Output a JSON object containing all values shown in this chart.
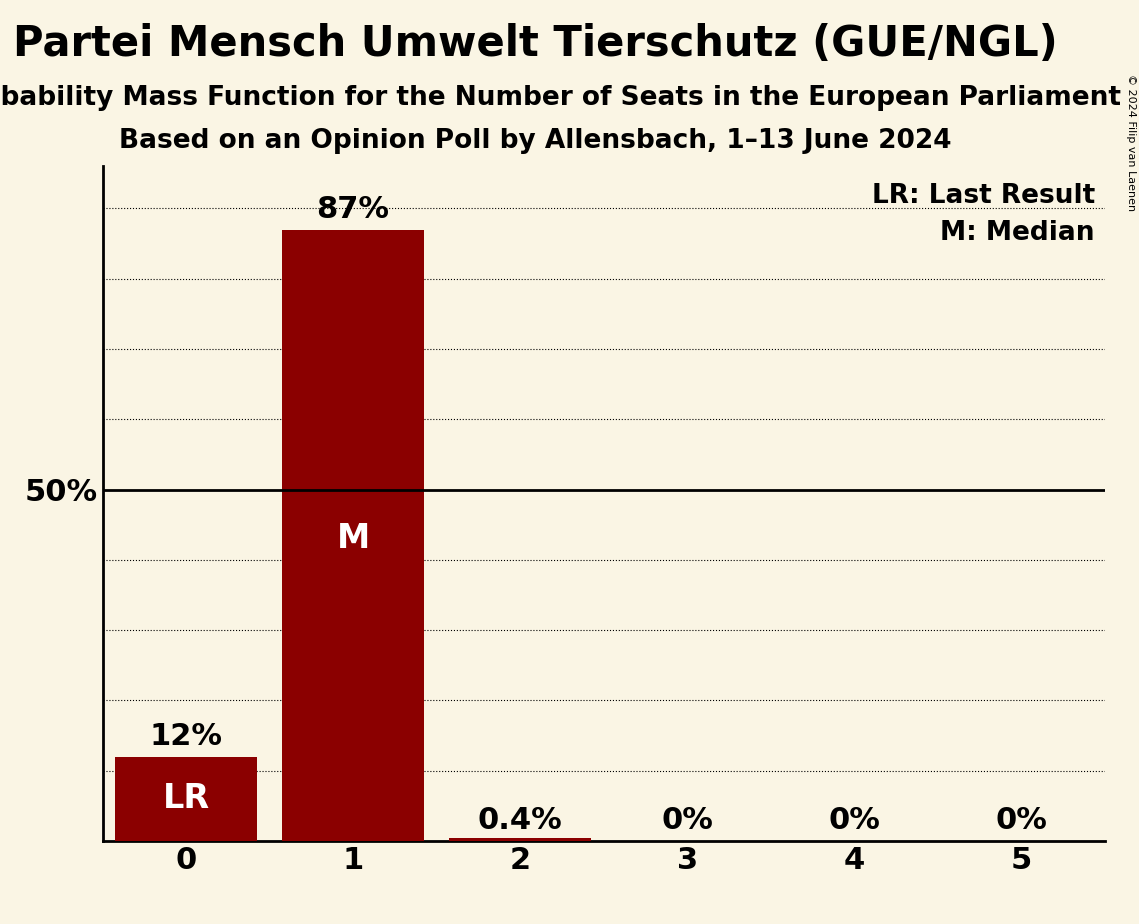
{
  "title": "Partei Mensch Umwelt Tierschutz (GUE/NGL)",
  "subtitle1": "Probability Mass Function for the Number of Seats in the European Parliament",
  "subtitle2": "Based on an Opinion Poll by Allensbach, 1–13 June 2024",
  "copyright": "© 2024 Filip van Laenen",
  "seats": [
    0,
    1,
    2,
    3,
    4,
    5
  ],
  "probabilities": [
    0.12,
    0.87,
    0.004,
    0.0,
    0.0,
    0.0
  ],
  "bar_color": "#8B0000",
  "background_color": "#FAF5E4",
  "bar_labels": [
    "12%",
    "87%",
    "0.4%",
    "0%",
    "0%",
    "0%"
  ],
  "median_seat": 1,
  "last_result_seat": 0,
  "legend_lr": "LR: Last Result",
  "legend_m": "M: Median",
  "ylabel_50": "50%",
  "ylim": [
    0,
    0.96
  ],
  "xlim": [
    -0.5,
    5.5
  ],
  "xlabel_fontsize": 22,
  "title_fontsize": 30,
  "subtitle_fontsize": 19,
  "bar_label_fontsize": 22,
  "inside_label_fontsize": 24,
  "legend_fontsize": 19,
  "ylabel_fontsize": 22,
  "grid_positions": [
    0.1,
    0.2,
    0.3,
    0.4,
    0.6,
    0.7,
    0.8,
    0.9
  ]
}
